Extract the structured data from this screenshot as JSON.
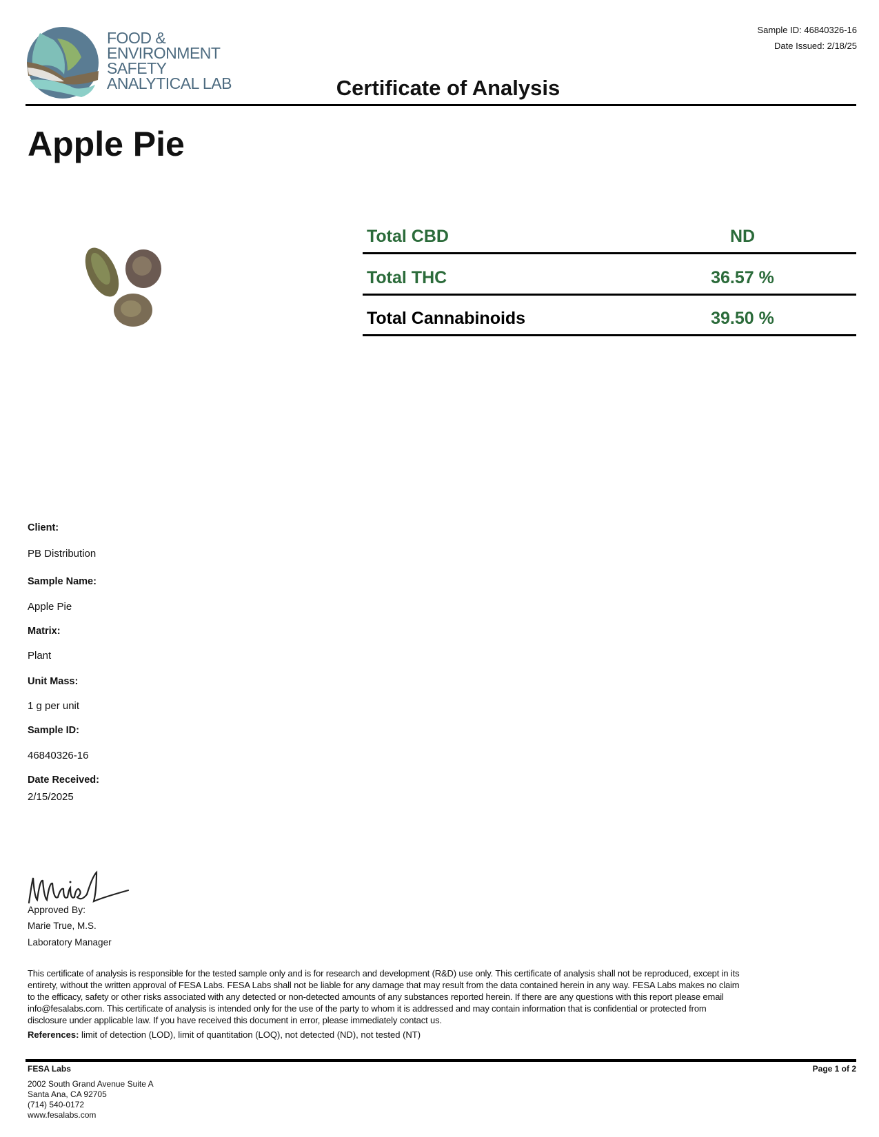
{
  "header": {
    "logo_lines": [
      "FOOD &",
      "ENVIRONMENT",
      "SAFETY",
      "ANALYTICAL LAB"
    ],
    "sample_id": "Sample ID: 46840326-16",
    "date_issued": "Date Issued: 2/18/25",
    "title": "Certificate of Analysis"
  },
  "product_name": "Apple Pie",
  "summary": [
    {
      "label": "Total CBD",
      "value": "ND"
    },
    {
      "label": "Total THC",
      "value": "36.57 %"
    },
    {
      "label": "Total Cannabinoids",
      "value": "39.50 %"
    }
  ],
  "colors": {
    "accent_green": "#2b6b3a",
    "logo_blue": "#4d6b80"
  },
  "details": {
    "client_label": "Client:",
    "client": "PB Distribution",
    "sample_name_label": "Sample Name:",
    "sample_name": "Apple Pie",
    "matrix_label": "Matrix:",
    "matrix": "Plant",
    "unit_mass_label": "Unit Mass:",
    "unit_mass": "1 g per unit",
    "sample_id_label": "Sample ID:",
    "sample_id": "46840326-16",
    "date_received_label": "Date Received:",
    "date_received": "2/15/2025"
  },
  "approval": {
    "signature": "Marie",
    "approved_by": "Approved By:",
    "name": "Marie True, M.S.",
    "role": "Laboratory Manager"
  },
  "disclaimer_lines": [
    "This certificate of analysis is responsible for the tested sample only and is for research and development (R&D) use only. This certificate of analysis shall not be reproduced, except in its",
    "entirety, without the written approval of FESA Labs. FESA Labs shall not be liable for any damage that may result from the data contained herein in any way. FESA Labs makes no claim",
    "to the efficacy, safety or other risks associated with any detected or non-detected amounts of any substances reported herein. If there are any questions with this report please email",
    "info@fesalabs.com. This certificate of analysis is intended only for the use of the party to whom it is addressed and may contain information that is confidential or protected from",
    "disclosure under applicable law. If you have received this document in error, please immediately contact us."
  ],
  "references": {
    "label": "References:",
    "text": " limit of detection (LOD), limit of quantitation (LOQ), not detected (ND), not tested (NT)"
  },
  "footer": {
    "company": "FESA Labs",
    "page": "Page 1 of 2",
    "address_lines": [
      "2002 South Grand Avenue Suite A",
      "Santa Ana, CA 92705",
      "(714) 540-0172",
      "www.fesalabs.com"
    ]
  }
}
